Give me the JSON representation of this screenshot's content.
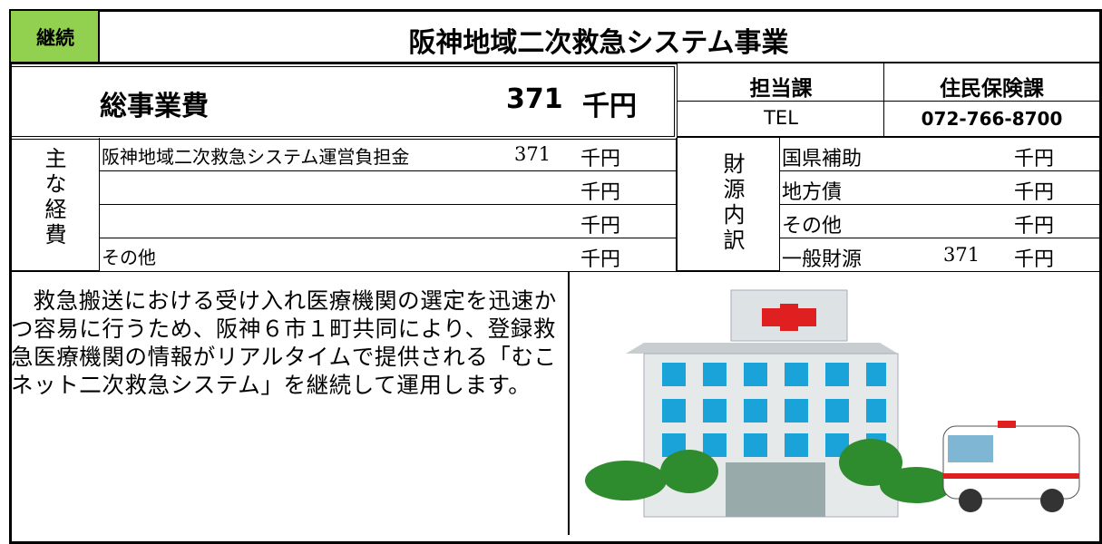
{
  "header": {
    "status": "継続",
    "title": "阪神地域二次救急システム事業"
  },
  "total": {
    "label": "総事業費",
    "amount": 371,
    "unit": "千円"
  },
  "contact": {
    "department_label": "担当課",
    "department": "住民保険課",
    "tel_label": "TEL",
    "tel": "072-766-8700"
  },
  "expenses": {
    "label": "主な経費",
    "rows": [
      {
        "name": "阪神地域二次救急システム運営負担金",
        "amount": 371,
        "unit": "千円"
      },
      {
        "unit": "千円"
      },
      {
        "unit": "千円"
      },
      {
        "name": "その他",
        "unit": "千円"
      }
    ]
  },
  "funding": {
    "label": "財源内訳",
    "rows": [
      {
        "name": "国県補助",
        "unit": "千円"
      },
      {
        "name": "地方債",
        "unit": "千円"
      },
      {
        "name": "その他",
        "unit": "千円"
      },
      {
        "name": "一般財源",
        "amount": 371,
        "unit": "千円"
      }
    ]
  },
  "description": "救急搬送における受け入れ医療機関の選定を迅速かつ容易に行うため、阪神６市１町共同により、登録救急医療機関の情報がリアルタイムで提供される「むこネット二次救急システム」を継続して運用します。"
}
